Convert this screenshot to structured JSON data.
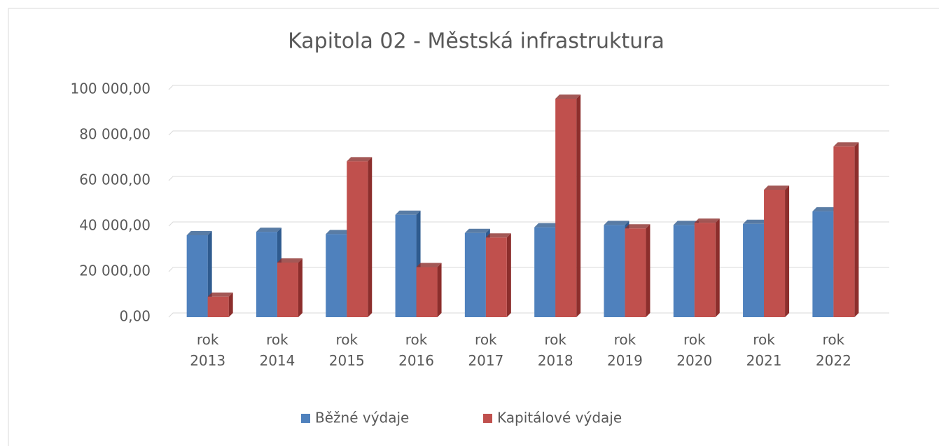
{
  "chart_data": {
    "type": "bar3d",
    "title": "Kapitola 02 - Městská infrastruktura",
    "categories": [
      "rok 2013",
      "rok 2014",
      "rok 2015",
      "rok 2016",
      "rok 2017",
      "rok 2018",
      "rok 2019",
      "rok 2020",
      "rok 2021",
      "rok 2022"
    ],
    "series": [
      {
        "name": "Běžné výdaje",
        "color": "#4f81bd",
        "side_color": "#2f5b8f",
        "values": [
          36000,
          37500,
          36500,
          45000,
          37000,
          39500,
          40500,
          40500,
          41000,
          46500
        ]
      },
      {
        "name": "Kapitálové výdaje",
        "color": "#c0504d",
        "side_color": "#8c2e2c",
        "values": [
          9000,
          24000,
          68500,
          22000,
          35000,
          96000,
          39000,
          41500,
          56000,
          75000
        ]
      }
    ],
    "ylim": [
      0,
      100000
    ],
    "yticks": [
      {
        "value": 0,
        "label": "0,00"
      },
      {
        "value": 20000,
        "label": "20 000,00"
      },
      {
        "value": 40000,
        "label": "40 000,00"
      },
      {
        "value": 60000,
        "label": "60 000,00"
      },
      {
        "value": 80000,
        "label": "80 000,00"
      },
      {
        "value": 100000,
        "label": "100 000,00"
      }
    ],
    "grid": true,
    "legend": "bottom"
  }
}
